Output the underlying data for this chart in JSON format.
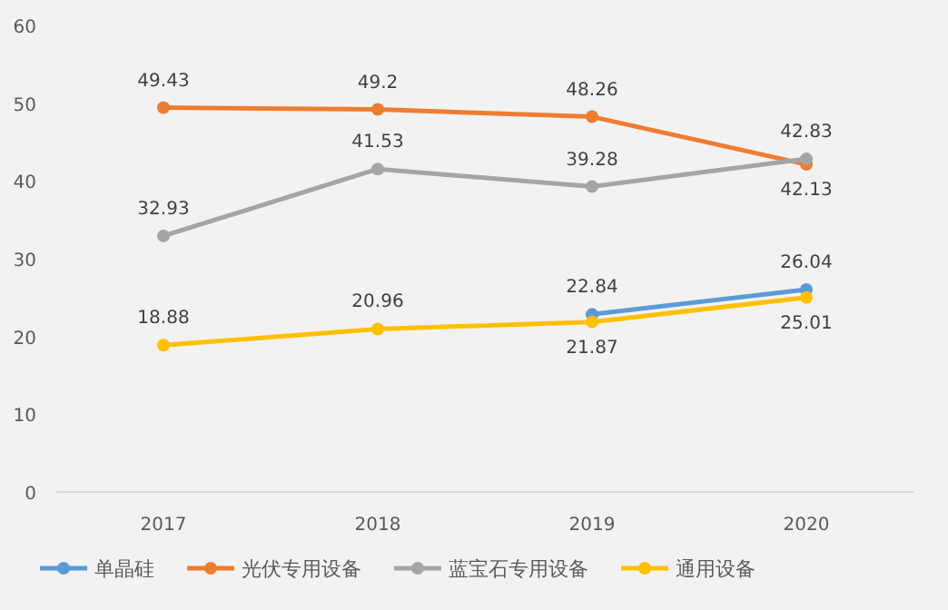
{
  "chart_data": {
    "type": "line",
    "categories": [
      "2017",
      "2018",
      "2019",
      "2020"
    ],
    "series": [
      {
        "name": "单晶硅",
        "color": "#5b9bd5",
        "values": [
          null,
          null,
          22.84,
          26.04
        ]
      },
      {
        "name": "光伏专用设备",
        "color": "#ed7d31",
        "values": [
          49.43,
          49.2,
          48.26,
          42.13
        ]
      },
      {
        "name": "蓝宝石专用设备",
        "color": "#a5a5a5",
        "values": [
          32.93,
          41.53,
          39.28,
          42.83
        ]
      },
      {
        "name": "通用设备",
        "color": "#ffc000",
        "values": [
          18.88,
          20.96,
          21.87,
          25.01
        ]
      }
    ],
    "ylim": [
      0,
      60
    ],
    "yticks": [
      0,
      10,
      20,
      30,
      40,
      50,
      60
    ],
    "grid": false,
    "legend": "bottom",
    "marker": "circle",
    "line_style": "solid",
    "data_labels": true
  }
}
